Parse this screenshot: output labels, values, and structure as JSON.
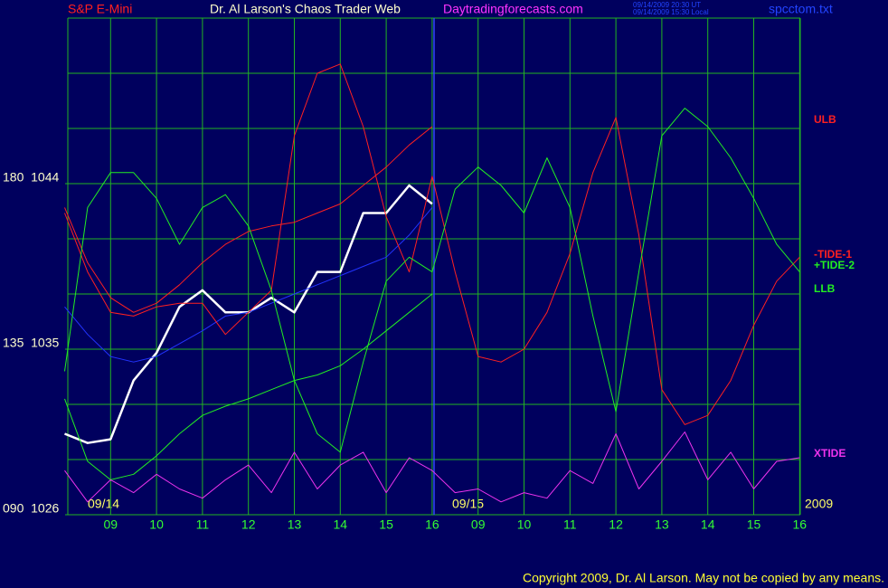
{
  "chart_data": {
    "type": "line",
    "symbol": "S&P E-Mini",
    "title": "Dr. Al Larson's Chaos Trader Web",
    "site": "Daytradingforecasts.com",
    "timestamps": [
      "09/14/2009 20:30 UT",
      "09/14/2009 15:30 Local"
    ],
    "file": "spcctom.txt",
    "copyright": "Copyright 2009, Dr. Al Larson. May not be copied by any means.",
    "date_labels": [
      "09/14",
      "09/15",
      "2009"
    ],
    "categories": [
      null,
      null,
      "09",
      null,
      "10",
      null,
      "11",
      null,
      "12",
      null,
      "13",
      null,
      "14",
      null,
      "15",
      null,
      "16",
      null,
      "09",
      null,
      "10",
      null,
      "11",
      null,
      "12",
      null,
      "13",
      null,
      "14",
      null,
      "15",
      null,
      "16"
    ],
    "ylim": [
      1026,
      1053
    ],
    "yticks": [
      {
        "value": 1026,
        "label": "090  1026"
      },
      {
        "value": 1035,
        "label": "135  1035"
      },
      {
        "value": 1044,
        "label": "180  1044"
      }
    ],
    "ygrid": [
      1026,
      1029,
      1032,
      1035,
      1038,
      1041,
      1044,
      1047,
      1050,
      1053
    ],
    "grid": true,
    "grid_color": "#22b422",
    "background": "#00005e",
    "series": [
      {
        "color": "#ffffff",
        "values": [
          1030.4,
          1029.9,
          1030.1,
          1033.3,
          1034.8,
          1037.3,
          1038.2,
          1037.0,
          1037.0,
          1037.8,
          1037.0,
          1039.2,
          1039.2,
          1042.4,
          1042.4,
          1043.9,
          1042.9,
          null,
          null,
          null,
          null,
          null,
          null,
          null,
          null,
          null,
          null,
          null,
          null,
          null,
          null,
          null,
          null
        ]
      },
      {
        "color": "#2233ff",
        "values": [
          1037.3,
          1035.8,
          1034.6,
          1034.3,
          1034.6,
          1035.3,
          1036.0,
          1036.8,
          1037.0,
          1037.5,
          1038.0,
          1038.5,
          1039.0,
          1039.5,
          1040.0,
          1041.2,
          1042.7,
          null,
          null,
          null,
          null,
          null,
          null,
          null,
          null,
          null,
          null,
          null,
          null,
          null,
          null,
          null,
          null
        ]
      },
      {
        "name": "ULB",
        "color": "#ff2020",
        "values": [
          1042.7,
          1039.7,
          1037.8,
          1037.0,
          1037.5,
          1038.5,
          1039.7,
          1040.7,
          1041.4,
          1041.7,
          1041.9,
          1042.4,
          1042.9,
          1043.9,
          1044.9,
          1046.1,
          1047.1,
          null,
          null,
          null,
          null,
          null,
          null,
          null,
          null,
          null,
          null,
          null,
          null,
          null,
          null,
          null,
          null
        ]
      },
      {
        "name": "LLB",
        "color": "#22ee22",
        "values": [
          1032.3,
          1028.9,
          1027.9,
          1028.2,
          1029.2,
          1030.4,
          1031.4,
          1031.9,
          1032.3,
          1032.8,
          1033.3,
          1033.6,
          1034.1,
          1035.0,
          1036.0,
          1037.0,
          1038.0,
          null,
          null,
          null,
          null,
          null,
          null,
          null,
          null,
          null,
          null,
          null,
          null,
          null,
          null,
          null,
          null
        ]
      },
      {
        "name": "-TIDE-1",
        "color": "#ff2020",
        "values": [
          1042.4,
          1039.2,
          1037.0,
          1036.8,
          1037.3,
          1037.5,
          1037.5,
          1035.8,
          1037.0,
          1038.2,
          1046.6,
          1050.0,
          1050.5,
          1047.1,
          1042.2,
          1039.2,
          1044.4,
          1039.2,
          1034.6,
          1034.3,
          1035.0,
          1037.0,
          1040.2,
          1044.6,
          1047.6,
          1041.2,
          1032.8,
          1030.9,
          1031.4,
          1033.3,
          1036.3,
          1038.7,
          1040.0
        ]
      },
      {
        "name": "+TIDE-2",
        "color": "#22ee22",
        "values": [
          1033.8,
          1042.7,
          1044.6,
          1044.6,
          1043.2,
          1040.7,
          1042.7,
          1043.4,
          1041.7,
          1038.2,
          1033.3,
          1030.4,
          1029.4,
          1034.3,
          1038.7,
          1040.0,
          1039.2,
          1043.7,
          1044.9,
          1043.9,
          1042.4,
          1045.4,
          1042.7,
          1036.8,
          1031.6,
          1039.2,
          1046.6,
          1048.1,
          1047.1,
          1045.4,
          1043.2,
          1040.7,
          1039.2
        ]
      },
      {
        "name": "XTIDE",
        "color": "#ee33ee",
        "values": [
          1028.4,
          1026.7,
          1027.9,
          1027.2,
          1028.2,
          1027.4,
          1026.9,
          1027.9,
          1028.7,
          1027.2,
          1029.4,
          1027.4,
          1028.7,
          1029.4,
          1027.2,
          1029.1,
          1028.4,
          1027.2,
          1027.4,
          1026.7,
          1027.2,
          1026.9,
          1028.4,
          1027.7,
          1030.4,
          1027.4,
          1028.9,
          1030.5,
          1027.9,
          1029.4,
          1027.4,
          1028.9,
          1029.1
        ]
      }
    ]
  }
}
